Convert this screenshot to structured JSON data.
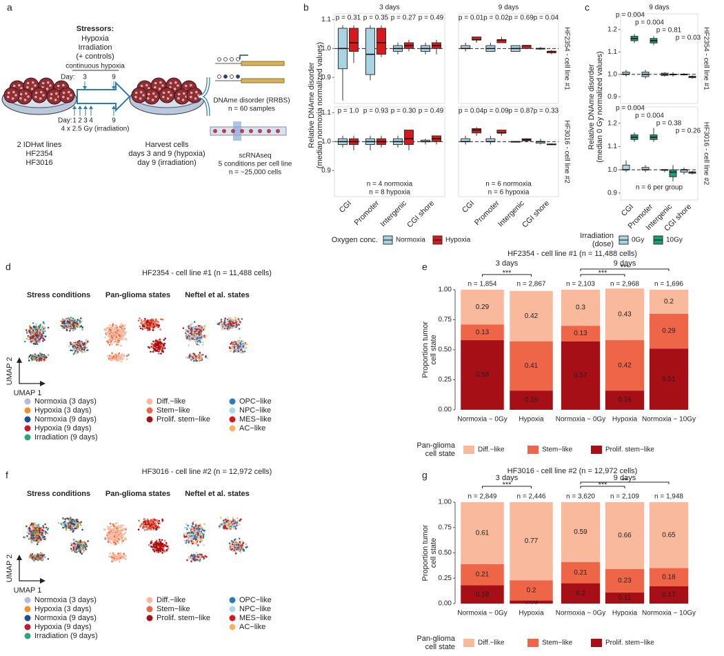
{
  "panel_labels": [
    "a",
    "b",
    "c",
    "d",
    "e",
    "f",
    "g"
  ],
  "diagram": {
    "stressors_title": "Stressors:",
    "stressors": [
      "Hypoxia",
      "Irradiation",
      "(+ controls)"
    ],
    "hypoxia_label": "continuous hypoxia",
    "hypoxia_day_label": "Day:",
    "hypoxia_days": [
      "3",
      "9"
    ],
    "irradiation_day_label": "Day:",
    "irradiation_days": [
      "1",
      "2",
      "3",
      "4",
      "9"
    ],
    "irradiation_label": "4 x 2.5 Gy (irradiation)",
    "lines_title": "2 IDHwt lines",
    "lines": [
      "HF2354",
      "HF3016"
    ],
    "harvest": [
      "Harvest cells",
      "days 3 and 9 (hypoxia)",
      "day 9 (irradiation)"
    ],
    "rrbs": [
      "DNAme disorder (RRBS)",
      "n = 60 samples"
    ],
    "scrna": [
      "scRNAseq",
      "5 conditions per cell line",
      "n = ~25,000 cells"
    ]
  },
  "umap_panels": [
    {
      "title": "HF2354 - cell line #1 (n = 11,488 cells)",
      "subtitles": [
        "Stress conditions",
        "Pan-glioma states",
        "Neftel et al. states"
      ],
      "axis_labels": [
        "UMAP 2",
        "UMAP 1"
      ],
      "legends": [
        [
          {
            "name": "Normoxia (3 days)",
            "color": "#b4b9e0"
          },
          {
            "name": "Hypoxia (3 days)",
            "color": "#f28e2b"
          },
          {
            "name": "Normoxia (9 days)",
            "color": "#1f4e8c"
          },
          {
            "name": "Hypoxia (9 days)",
            "color": "#c9182b"
          },
          {
            "name": "Irradiation (9 days)",
            "color": "#2ca57c"
          }
        ],
        [
          {
            "name": "Diff.−like",
            "color": "#f9b99c"
          },
          {
            "name": "Stem−like",
            "color": "#ef6548"
          },
          {
            "name": "Prolif. stem−like",
            "color": "#a50f15"
          }
        ],
        [
          {
            "name": "OPC−like",
            "color": "#2c7bb6"
          },
          {
            "name": "NPC−like",
            "color": "#abd9e9"
          },
          {
            "name": "MES−like",
            "color": "#d7191c"
          },
          {
            "name": "AC−like",
            "color": "#fdae61"
          }
        ]
      ]
    },
    {
      "title": "HF3016 - cell line #2 (n = 12,972 cells)",
      "subtitles": [
        "Stress conditions",
        "Pan-glioma states",
        "Neftel et al. states"
      ],
      "axis_labels": [
        "UMAP 2",
        "UMAP 1"
      ],
      "legends": [
        [
          {
            "name": "Normoxia (3 days)",
            "color": "#b4b9e0"
          },
          {
            "name": "Hypoxia (3 days)",
            "color": "#f28e2b"
          },
          {
            "name": "Normoxia (9 days)",
            "color": "#1f4e8c"
          },
          {
            "name": "Hypoxia (9 days)",
            "color": "#c9182b"
          },
          {
            "name": "Irradiation (9 days)",
            "color": "#2ca57c"
          }
        ],
        [
          {
            "name": "Diff.−like",
            "color": "#f9b99c"
          },
          {
            "name": "Stem−like",
            "color": "#ef6548"
          },
          {
            "name": "Prolif. stem−like",
            "color": "#a50f15"
          }
        ],
        [
          {
            "name": "OPC−like",
            "color": "#2c7bb6"
          },
          {
            "name": "NPC−like",
            "color": "#abd9e9"
          },
          {
            "name": "MES−like",
            "color": "#d7191c"
          },
          {
            "name": "AC−like",
            "color": "#fdae61"
          }
        ]
      ]
    }
  ],
  "chart_data": [
    {
      "type": "box",
      "ylabel": [
        "Relative DNAme disorder",
        "(median normoxia normalized values)"
      ],
      "groups": [
        "3 days",
        "9 days"
      ],
      "categories": [
        "CGI",
        "Promoter",
        "Intergenic",
        "CGI shore"
      ],
      "series": [
        {
          "name": "Normoxia",
          "color": "#a8d3e3"
        },
        {
          "name": "Hypoxia",
          "color": "#d7191c"
        }
      ],
      "legend_title": [
        "Oxygen conc."
      ],
      "ylim": [
        0.81,
        1.12
      ],
      "yticks": [
        0.9,
        {
          "value": 1,
          "label": "1.0"
        },
        1.1
      ],
      "hline": 1,
      "notes": [
        [
          "n = 4 normoxia",
          "n = 8 hypoxia"
        ],
        [
          "n = 6 normoxia",
          "n = 6 hypoxia"
        ]
      ],
      "rows": [
        {
          "label": "HF2354 - cell line #1",
          "pvalues": [
            [
              "p = 0.31",
              "p = 0.35",
              "p = 0.27",
              "p = 0.49"
            ],
            [
              "p = 0.01",
              "p = 0.02",
              "p = 0.69",
              "p = 0.04"
            ]
          ],
          "boxes": [
            [
              [
                [
                  0.82,
                  0.93,
                  1.0,
                  1.07,
                  1.08
                ],
                [
                  0.95,
                  0.99,
                  1.02,
                  1.07,
                  1.08
                ]
              ],
              [
                [
                  0.89,
                  0.91,
                  0.98,
                  1.07,
                  1.08
                ],
                [
                  0.97,
                  0.98,
                  1.02,
                  1.07,
                  1.08
                ]
              ],
              [
                [
                  0.98,
                  0.99,
                  1.0,
                  1.01,
                  1.02
                ],
                [
                  0.99,
                  1.0,
                  1.01,
                  1.02,
                  1.03
                ]
              ],
              [
                [
                  0.98,
                  0.99,
                  1.0,
                  1.01,
                  1.02
                ],
                [
                  0.98,
                  1.0,
                  1.01,
                  1.02,
                  1.03
                ]
              ]
            ],
            [
              [
                [
                  0.99,
                  1.0,
                  1.0,
                  1.01,
                  1.02
                ],
                [
                  1.02,
                  1.03,
                  1.03,
                  1.04,
                  1.04
                ]
              ],
              [
                [
                  0.99,
                  0.99,
                  1.0,
                  1.01,
                  1.02
                ],
                [
                  1.02,
                  1.02,
                  1.03,
                  1.03,
                  1.04
                ]
              ],
              [
                [
                  0.99,
                  0.99,
                  1.0,
                  1.01,
                  1.01
                ],
                [
                  1.0,
                  1.0,
                  1.01,
                  1.01,
                  1.01
                ]
              ],
              [
                [
                  0.995,
                  1.0,
                  1.0,
                  1.0,
                  1.005
                ],
                [
                  0.98,
                  0.985,
                  0.99,
                  0.99,
                  0.995
                ]
              ]
            ]
          ]
        },
        {
          "label": "HF3016 - cell line #2",
          "pvalues": [
            [
              "p = 1.0",
              "p = 0.93",
              "p = 0.30",
              "p = 0.49"
            ],
            [
              "p = 0.04",
              "p = 0.09",
              "p = 0.87",
              "p = 0.33"
            ]
          ],
          "boxes": [
            [
              [
                [
                  0.98,
                  0.99,
                  1.0,
                  1.01,
                  1.02
                ],
                [
                  0.97,
                  0.99,
                  1.0,
                  1.01,
                  1.02
                ]
              ],
              [
                [
                  0.97,
                  0.99,
                  1.0,
                  1.01,
                  1.02
                ],
                [
                  0.98,
                  0.99,
                  1.0,
                  1.01,
                  1.02
                ]
              ],
              [
                [
                  0.98,
                  0.99,
                  1.0,
                  1.01,
                  1.02
                ],
                [
                  0.97,
                  0.99,
                  1.01,
                  1.04,
                  1.04
                ]
              ],
              [
                [
                  0.99,
                  1.0,
                  1.0,
                  1.005,
                  1.01
                ],
                [
                  0.99,
                  1.0,
                  1.01,
                  1.02,
                  1.02
                ]
              ]
            ],
            [
              [
                [
                  0.99,
                  1.0,
                  1.0,
                  1.01,
                  1.02
                ],
                [
                  1.02,
                  1.03,
                  1.04,
                  1.045,
                  1.05
                ]
              ],
              [
                [
                  0.99,
                  1.0,
                  1.0,
                  1.01,
                  1.02
                ],
                [
                  1.02,
                  1.03,
                  1.03,
                  1.04,
                  1.04
                ]
              ],
              [
                [
                  0.998,
                  1.0,
                  1.0,
                  1.0,
                  1.002
                ],
                [
                  1.0,
                  1.003,
                  1.006,
                  1.01,
                  1.012
                ]
              ],
              [
                [
                  0.99,
                  0.995,
                  1.0,
                  1.0,
                  1.01
                ],
                [
                  0.988,
                  0.99,
                  0.99,
                  0.992,
                  0.994
                ]
              ]
            ]
          ]
        }
      ]
    },
    {
      "type": "box",
      "ylabel": [
        "Relative DNAme disorder",
        "(median 0 Gy normalized values)"
      ],
      "groups": [
        "9 days"
      ],
      "categories": [
        "CGI",
        "Promoter",
        "Intergenic",
        "CGI shore"
      ],
      "series": [
        {
          "name": "0Gy",
          "color": "#a8d3e3"
        },
        {
          "name": "10Gy",
          "color": "#1b9e77"
        }
      ],
      "legend_title": [
        "Irradiation",
        "(dose)"
      ],
      "ylim": [
        0.87,
        1.27
      ],
      "yticks": [
        0.9,
        {
          "value": 1,
          "label": "1.0"
        },
        1.1,
        1.2
      ],
      "hline": 1,
      "notes": [
        [
          "n = 6 per group"
        ]
      ],
      "rows": [
        {
          "label": "HF2354 - cell line #1",
          "pvalues": [
            [
              "p = 0.004",
              "p = 0.004",
              "p = 0.81",
              "p = 0.03"
            ]
          ],
          "boxes": [
            [
              [
                [
                  0.99,
                  1.0,
                  1.0,
                  1.01,
                  1.02
                ],
                [
                  1.14,
                  1.15,
                  1.16,
                  1.17,
                  1.18
                ]
              ],
              [
                [
                  0.98,
                  0.99,
                  1.0,
                  1.01,
                  1.02
                ],
                [
                  1.13,
                  1.14,
                  1.15,
                  1.16,
                  1.17
                ]
              ],
              [
                [
                  0.99,
                  0.995,
                  1.0,
                  1.005,
                  1.01
                ],
                [
                  0.99,
                  1.0,
                  1.0,
                  1.0,
                  1.01
                ]
              ],
              [
                [
                  0.995,
                  1.0,
                  1.0,
                  1.0,
                  1.005
                ],
                [
                  0.98,
                  0.985,
                  0.99,
                  0.99,
                  0.995
                ]
              ]
            ]
          ]
        },
        {
          "label": "HF3016 - cell line #2",
          "pvalues": [
            [
              "p = 0.004",
              "p = 0.004",
              "p = 0.38",
              "p = 0.26"
            ]
          ],
          "boxes": [
            [
              [
                [
                  0.99,
                  1.0,
                  1.0,
                  1.02,
                  1.04
                ],
                [
                  1.12,
                  1.13,
                  1.14,
                  1.15,
                  1.16
                ]
              ],
              [
                [
                  0.99,
                  1.0,
                  1.0,
                  1.01,
                  1.02
                ],
                [
                  1.12,
                  1.13,
                  1.14,
                  1.15,
                  1.18
                ]
              ],
              [
                [
                  0.99,
                  1.0,
                  1.0,
                  1.0,
                  1.0
                ],
                [
                  0.95,
                  0.97,
                  0.99,
                  1.0,
                  1.02
                ]
              ],
              [
                [
                  0.98,
                  0.99,
                  1.0,
                  1.0,
                  1.01
                ],
                [
                  0.98,
                  0.985,
                  0.99,
                  0.99,
                  0.995
                ]
              ]
            ]
          ]
        }
      ]
    },
    {
      "type": "stacked_bar",
      "title": "HF2354 - cell line #1 (n = 11,488 cells)",
      "ylabel": [
        "Proportion tumor",
        "cell state"
      ],
      "ylim": [
        0,
        1
      ],
      "yticks": [
        {
          "value": 0,
          "label": "0.00"
        },
        {
          "value": 0.25,
          "label": "0.25"
        },
        {
          "value": 0.5,
          "label": "0.50"
        },
        {
          "value": 0.75,
          "label": "0.75"
        },
        {
          "value": 1,
          "label": "1.00"
        }
      ],
      "legend_title": [
        "Pan-glioma",
        "cell state"
      ],
      "series": [
        {
          "name": "Diff.−like",
          "color": "#f9b99c"
        },
        {
          "name": "Stem−like",
          "color": "#ef6548"
        },
        {
          "name": "Prolif. stem−like",
          "color": "#a50f15"
        }
      ],
      "facets": [
        {
          "label": "3 days",
          "categories": [
            "Normoxia − 0Gy",
            "Hypoxia"
          ],
          "n_labels": [
            "n = 1,854",
            "n = 2,867"
          ],
          "brackets": [
            "***"
          ],
          "values": [
            [
              0.29,
              0.42
            ],
            [
              0.13,
              0.41
            ],
            [
              0.58,
              0.16
            ]
          ]
        },
        {
          "label": "9 days",
          "categories": [
            "Normoxia − 0Gy",
            "Hypoxia",
            "Normoxia − 10Gy"
          ],
          "n_labels": [
            "n = 2,103",
            "n = 2,968",
            "n = 1,696"
          ],
          "brackets": [
            "***",
            "***"
          ],
          "values": [
            [
              0.3,
              0.43,
              0.2
            ],
            [
              0.13,
              0.42,
              0.29
            ],
            [
              0.57,
              0.16,
              0.51
            ]
          ]
        }
      ]
    },
    {
      "type": "stacked_bar",
      "title": "HF3016 - cell line #2 (n = 12,972 cells)",
      "ylabel": [
        "Proportion tumor",
        "cell state"
      ],
      "ylim": [
        0,
        1
      ],
      "yticks": [
        {
          "value": 0,
          "label": "0.00"
        },
        {
          "value": 0.25,
          "label": "0.25"
        },
        {
          "value": 0.5,
          "label": "0.50"
        },
        {
          "value": 0.75,
          "label": "0.75"
        },
        {
          "value": 1,
          "label": "1.00"
        }
      ],
      "legend_title": [
        "Pan-glioma",
        "cell state"
      ],
      "series": [
        {
          "name": "Diff.−like",
          "color": "#f9b99c"
        },
        {
          "name": "Stem−like",
          "color": "#ef6548"
        },
        {
          "name": "Prolif. stem−like",
          "color": "#a50f15"
        }
      ],
      "facets": [
        {
          "label": "3 days",
          "categories": [
            "Normoxia − 0Gy",
            "Hypoxia"
          ],
          "n_labels": [
            "n = 2,849",
            "n = 2,446"
          ],
          "brackets": [
            "***"
          ],
          "values": [
            [
              0.61,
              0.77
            ],
            [
              0.21,
              0.2
            ],
            [
              0.18,
              0.03
            ]
          ]
        },
        {
          "label": "9 days",
          "categories": [
            "Normoxia − 0Gy",
            "Hypoxia",
            "Normoxia − 10Gy"
          ],
          "n_labels": [
            "n = 3,620",
            "n = 2,109",
            "n = 1,948"
          ],
          "brackets": [
            "***",
            "**"
          ],
          "values": [
            [
              0.59,
              0.66,
              0.65
            ],
            [
              0.21,
              0.23,
              0.18
            ],
            [
              0.2,
              0.11,
              0.17
            ]
          ]
        }
      ]
    }
  ]
}
